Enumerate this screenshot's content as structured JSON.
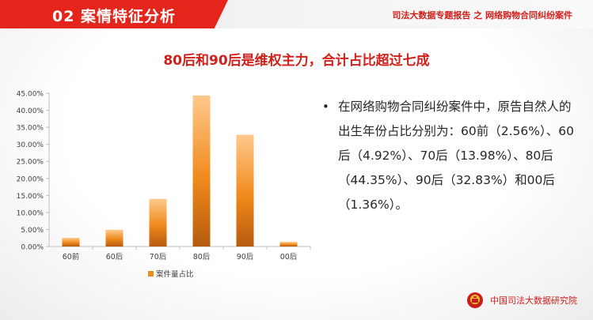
{
  "header": {
    "section_title": "02  案情特征分析",
    "report_title": "司法大数据专题报告 之 网络购物合同纠纷案件"
  },
  "headline": "80后和90后是维权主力，合计占比超过七成",
  "chart_data": {
    "type": "bar",
    "categories": [
      "60前",
      "60后",
      "70后",
      "80后",
      "90后",
      "00后"
    ],
    "series": [
      {
        "name": "案件量占比",
        "values": [
          2.56,
          4.92,
          13.98,
          44.35,
          32.83,
          1.36
        ]
      }
    ],
    "y_ticks": [
      "0.00%",
      "5.00%",
      "10.00%",
      "15.00%",
      "20.00%",
      "25.00%",
      "30.00%",
      "35.00%",
      "40.00%",
      "45.00%"
    ],
    "ylim": [
      0,
      45
    ],
    "grid": false,
    "legend_position": "bottom",
    "bar_color": "#f08a1c"
  },
  "body_text": "在网络购物合同纠纷案件中，原告自然人的出生年份占比分别为：60前（2.56%）、60后（4.92%）、70后（13.98%）、80后（44.35%）、90后（32.83%）和00后（1.36%）。",
  "bullet_symbol": "•",
  "footer": {
    "org_name": "中国司法大数据研究院"
  },
  "colors": {
    "accent": "#e3251c",
    "text": "#262626"
  }
}
